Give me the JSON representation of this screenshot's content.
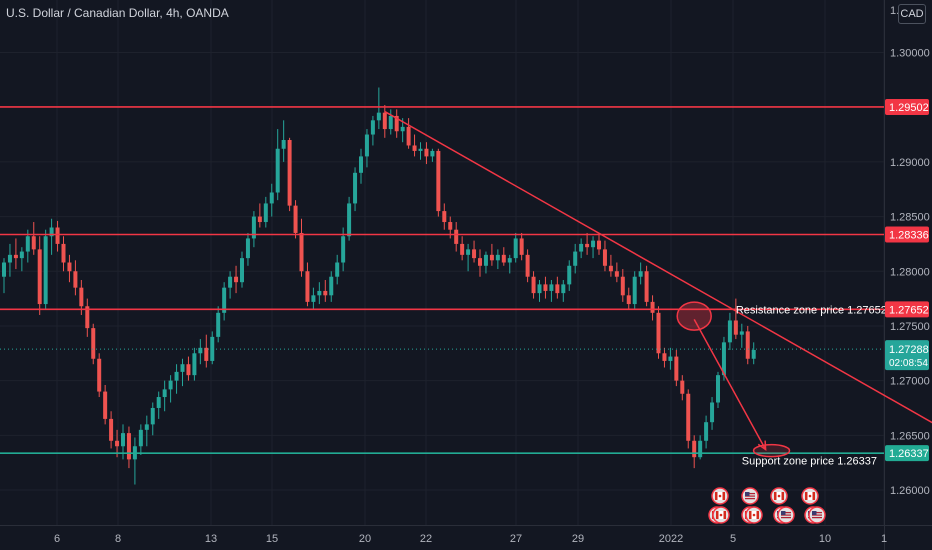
{
  "header": {
    "title": "U.S. Dollar / Canadian Dollar, 4h, OANDA",
    "currency": "CAD",
    "top_tick_partial": "1."
  },
  "colors": {
    "background": "#131722",
    "up": "#26a69a",
    "down": "#ef5350",
    "resistance_line": "#f23645",
    "support_line": "#22ab94",
    "axis_text": "#b2b5be",
    "annotation_text": "#ffffff"
  },
  "chart_data": {
    "type": "candlestick",
    "ylim": [
      1.2568,
      1.3048
    ],
    "y_ticks": [
      "1.30000",
      "1.29000",
      "1.28500",
      "1.28000",
      "1.27500",
      "1.27000",
      "1.26500",
      "1.26000"
    ],
    "x_ticks": [
      "6",
      "8",
      "13",
      "15",
      "20",
      "22",
      "27",
      "29",
      "2022",
      "5",
      "10",
      "1"
    ],
    "horizontal_levels": [
      {
        "value": 1.29502,
        "label": "1.29502",
        "kind": "resistance"
      },
      {
        "value": 1.28336,
        "label": "1.28336",
        "kind": "resistance"
      },
      {
        "value": 1.27652,
        "label": "1.27652",
        "kind": "resistance"
      },
      {
        "value": 1.26337,
        "label": "1.26337",
        "kind": "support"
      }
    ],
    "current_price": {
      "value": 1.27288,
      "label": "1.27288",
      "countdown": "02:08:54"
    },
    "trendline": {
      "from": {
        "bar": 64,
        "price": 1.2946
      },
      "to": {
        "bar": 163,
        "price": 1.264
      }
    },
    "projection": {
      "from": {
        "bar": 116,
        "price": 1.2756
      },
      "to": {
        "bar": 128,
        "price": 1.2637
      }
    },
    "annotations": [
      {
        "text": "Resistance zone price 1.27652",
        "bar": 123,
        "price": 1.2765
      },
      {
        "text": "Support zone price 1.26337",
        "bar": 124,
        "price": 1.2627
      }
    ],
    "candles": [
      [
        1.2795,
        1.2812,
        1.278,
        1.2808
      ],
      [
        1.2808,
        1.2825,
        1.2795,
        1.2815
      ],
      [
        1.2815,
        1.283,
        1.2802,
        1.2812
      ],
      [
        1.2812,
        1.2822,
        1.28,
        1.2818
      ],
      [
        1.2818,
        1.2838,
        1.2808,
        1.2832
      ],
      [
        1.2832,
        1.2845,
        1.2815,
        1.282
      ],
      [
        1.282,
        1.2832,
        1.276,
        1.277
      ],
      [
        1.277,
        1.2838,
        1.2765,
        1.2832
      ],
      [
        1.2832,
        1.2848,
        1.2815,
        1.284
      ],
      [
        1.284,
        1.2846,
        1.2818,
        1.2825
      ],
      [
        1.2825,
        1.2832,
        1.28,
        1.2808
      ],
      [
        1.2808,
        1.2815,
        1.279,
        1.28
      ],
      [
        1.28,
        1.281,
        1.2778,
        1.2785
      ],
      [
        1.2785,
        1.2792,
        1.276,
        1.2768
      ],
      [
        1.2768,
        1.2775,
        1.274,
        1.2748
      ],
      [
        1.2748,
        1.2752,
        1.2715,
        1.272
      ],
      [
        1.272,
        1.2725,
        1.2685,
        1.269
      ],
      [
        1.269,
        1.2696,
        1.266,
        1.2665
      ],
      [
        1.2665,
        1.2672,
        1.2638,
        1.2645
      ],
      [
        1.2645,
        1.2655,
        1.263,
        1.264
      ],
      [
        1.264,
        1.266,
        1.2628,
        1.2652
      ],
      [
        1.2652,
        1.2658,
        1.262,
        1.2628
      ],
      [
        1.2628,
        1.2648,
        1.2605,
        1.264
      ],
      [
        1.264,
        1.266,
        1.2632,
        1.2655
      ],
      [
        1.2655,
        1.2668,
        1.264,
        1.266
      ],
      [
        1.266,
        1.268,
        1.265,
        1.2675
      ],
      [
        1.2675,
        1.269,
        1.2665,
        1.2685
      ],
      [
        1.2685,
        1.27,
        1.2672,
        1.2692
      ],
      [
        1.2692,
        1.2705,
        1.268,
        1.27
      ],
      [
        1.27,
        1.2715,
        1.2688,
        1.2708
      ],
      [
        1.2708,
        1.272,
        1.2695,
        1.2715
      ],
      [
        1.2715,
        1.2722,
        1.27,
        1.2705
      ],
      [
        1.2705,
        1.273,
        1.27,
        1.2725
      ],
      [
        1.2725,
        1.2738,
        1.2715,
        1.273
      ],
      [
        1.273,
        1.2742,
        1.2712,
        1.2718
      ],
      [
        1.2718,
        1.2745,
        1.2715,
        1.274
      ],
      [
        1.274,
        1.2768,
        1.2735,
        1.2762
      ],
      [
        1.2762,
        1.279,
        1.2755,
        1.2785
      ],
      [
        1.2785,
        1.28,
        1.2775,
        1.2795
      ],
      [
        1.2795,
        1.2805,
        1.278,
        1.279
      ],
      [
        1.279,
        1.2818,
        1.2785,
        1.2812
      ],
      [
        1.2812,
        1.2835,
        1.2805,
        1.283
      ],
      [
        1.283,
        1.2855,
        1.2822,
        1.285
      ],
      [
        1.285,
        1.2862,
        1.284,
        1.2845
      ],
      [
        1.2845,
        1.2868,
        1.284,
        1.2862
      ],
      [
        1.2862,
        1.288,
        1.285,
        1.2872
      ],
      [
        1.2872,
        1.293,
        1.2865,
        1.2912
      ],
      [
        1.2912,
        1.2938,
        1.29,
        1.292
      ],
      [
        1.292,
        1.2922,
        1.2855,
        1.286
      ],
      [
        1.286,
        1.2865,
        1.283,
        1.2835
      ],
      [
        1.2835,
        1.2848,
        1.2795,
        1.28
      ],
      [
        1.28,
        1.2808,
        1.2768,
        1.2772
      ],
      [
        1.2772,
        1.2785,
        1.2765,
        1.2778
      ],
      [
        1.2778,
        1.279,
        1.277,
        1.2782
      ],
      [
        1.2782,
        1.2792,
        1.2772,
        1.2778
      ],
      [
        1.2778,
        1.28,
        1.2772,
        1.2795
      ],
      [
        1.2795,
        1.2815,
        1.2788,
        1.2808
      ],
      [
        1.2808,
        1.284,
        1.28,
        1.2832
      ],
      [
        1.2832,
        1.2868,
        1.2828,
        1.2862
      ],
      [
        1.2862,
        1.2895,
        1.2855,
        1.289
      ],
      [
        1.289,
        1.2912,
        1.288,
        1.2905
      ],
      [
        1.2905,
        1.293,
        1.2895,
        1.2925
      ],
      [
        1.2925,
        1.2942,
        1.2915,
        1.2938
      ],
      [
        1.2938,
        1.2968,
        1.293,
        1.2945
      ],
      [
        1.2945,
        1.2952,
        1.2922,
        1.293
      ],
      [
        1.293,
        1.2948,
        1.2925,
        1.2942
      ],
      [
        1.2942,
        1.2948,
        1.2922,
        1.2928
      ],
      [
        1.2928,
        1.294,
        1.2918,
        1.2932
      ],
      [
        1.2932,
        1.294,
        1.2912,
        1.2915
      ],
      [
        1.2915,
        1.2925,
        1.2905,
        1.291
      ],
      [
        1.291,
        1.2918,
        1.2902,
        1.2912
      ],
      [
        1.2912,
        1.2918,
        1.2898,
        1.2905
      ],
      [
        1.2905,
        1.2912,
        1.29,
        1.291
      ],
      [
        1.291,
        1.2912,
        1.285,
        1.2855
      ],
      [
        1.2855,
        1.2862,
        1.2838,
        1.2845
      ],
      [
        1.2845,
        1.285,
        1.283,
        1.2838
      ],
      [
        1.2838,
        1.2845,
        1.2818,
        1.2825
      ],
      [
        1.2825,
        1.2832,
        1.281,
        1.2815
      ],
      [
        1.2815,
        1.2825,
        1.28,
        1.282
      ],
      [
        1.282,
        1.2828,
        1.2808,
        1.2812
      ],
      [
        1.2812,
        1.282,
        1.2795,
        1.2805
      ],
      [
        1.2805,
        1.2818,
        1.2798,
        1.2815
      ],
      [
        1.2815,
        1.2825,
        1.2805,
        1.281
      ],
      [
        1.281,
        1.282,
        1.2802,
        1.2815
      ],
      [
        1.2815,
        1.2822,
        1.2805,
        1.2808
      ],
      [
        1.2808,
        1.2815,
        1.2798,
        1.2812
      ],
      [
        1.2812,
        1.2835,
        1.2808,
        1.283
      ],
      [
        1.283,
        1.2835,
        1.281,
        1.2815
      ],
      [
        1.2815,
        1.282,
        1.279,
        1.2795
      ],
      [
        1.2795,
        1.28,
        1.2775,
        1.278
      ],
      [
        1.278,
        1.2792,
        1.2772,
        1.2788
      ],
      [
        1.2788,
        1.2795,
        1.2775,
        1.2782
      ],
      [
        1.2782,
        1.2792,
        1.2772,
        1.2788
      ],
      [
        1.2788,
        1.2795,
        1.2775,
        1.278
      ],
      [
        1.278,
        1.2792,
        1.2772,
        1.2788
      ],
      [
        1.2788,
        1.281,
        1.2782,
        1.2805
      ],
      [
        1.2805,
        1.2825,
        1.2798,
        1.2818
      ],
      [
        1.2818,
        1.283,
        1.2812,
        1.2825
      ],
      [
        1.2825,
        1.2835,
        1.2815,
        1.2822
      ],
      [
        1.2822,
        1.2832,
        1.2812,
        1.2828
      ],
      [
        1.2828,
        1.2835,
        1.2815,
        1.282
      ],
      [
        1.282,
        1.2828,
        1.28,
        1.2805
      ],
      [
        1.2805,
        1.2815,
        1.2795,
        1.28
      ],
      [
        1.28,
        1.2808,
        1.279,
        1.2795
      ],
      [
        1.2795,
        1.2802,
        1.2772,
        1.2778
      ],
      [
        1.2778,
        1.2785,
        1.2765,
        1.277
      ],
      [
        1.277,
        1.28,
        1.2765,
        1.2795
      ],
      [
        1.2795,
        1.2808,
        1.2788,
        1.28
      ],
      [
        1.28,
        1.2805,
        1.2768,
        1.2772
      ],
      [
        1.2772,
        1.2778,
        1.2755,
        1.2762
      ],
      [
        1.2762,
        1.2768,
        1.272,
        1.2725
      ],
      [
        1.2725,
        1.273,
        1.2712,
        1.2718
      ],
      [
        1.2718,
        1.273,
        1.271,
        1.2722
      ],
      [
        1.2722,
        1.2728,
        1.2695,
        1.27
      ],
      [
        1.27,
        1.2705,
        1.2682,
        1.2688
      ],
      [
        1.2688,
        1.2692,
        1.2638,
        1.2645
      ],
      [
        1.2645,
        1.265,
        1.262,
        1.263
      ],
      [
        1.263,
        1.265,
        1.2628,
        1.2645
      ],
      [
        1.2645,
        1.2668,
        1.2638,
        1.2662
      ],
      [
        1.2662,
        1.2685,
        1.2655,
        1.268
      ],
      [
        1.268,
        1.2708,
        1.2675,
        1.2705
      ],
      [
        1.2705,
        1.274,
        1.27,
        1.2735
      ],
      [
        1.2735,
        1.2762,
        1.2728,
        1.2755
      ],
      [
        1.2755,
        1.2775,
        1.2738,
        1.2742
      ],
      [
        1.2742,
        1.2752,
        1.273,
        1.2745
      ],
      [
        1.2745,
        1.275,
        1.2715,
        1.272
      ],
      [
        1.272,
        1.2735,
        1.2715,
        1.2728
      ]
    ]
  },
  "news_icons": {
    "row1": [
      "ca-flag-icon",
      "us-flag-icon",
      "ca-flag-icon",
      "ca-flag-icon"
    ],
    "row2": [
      "ca-flag-icon",
      "ca-flag-icon",
      "us-flag-icon",
      "us-flag-icon"
    ]
  }
}
